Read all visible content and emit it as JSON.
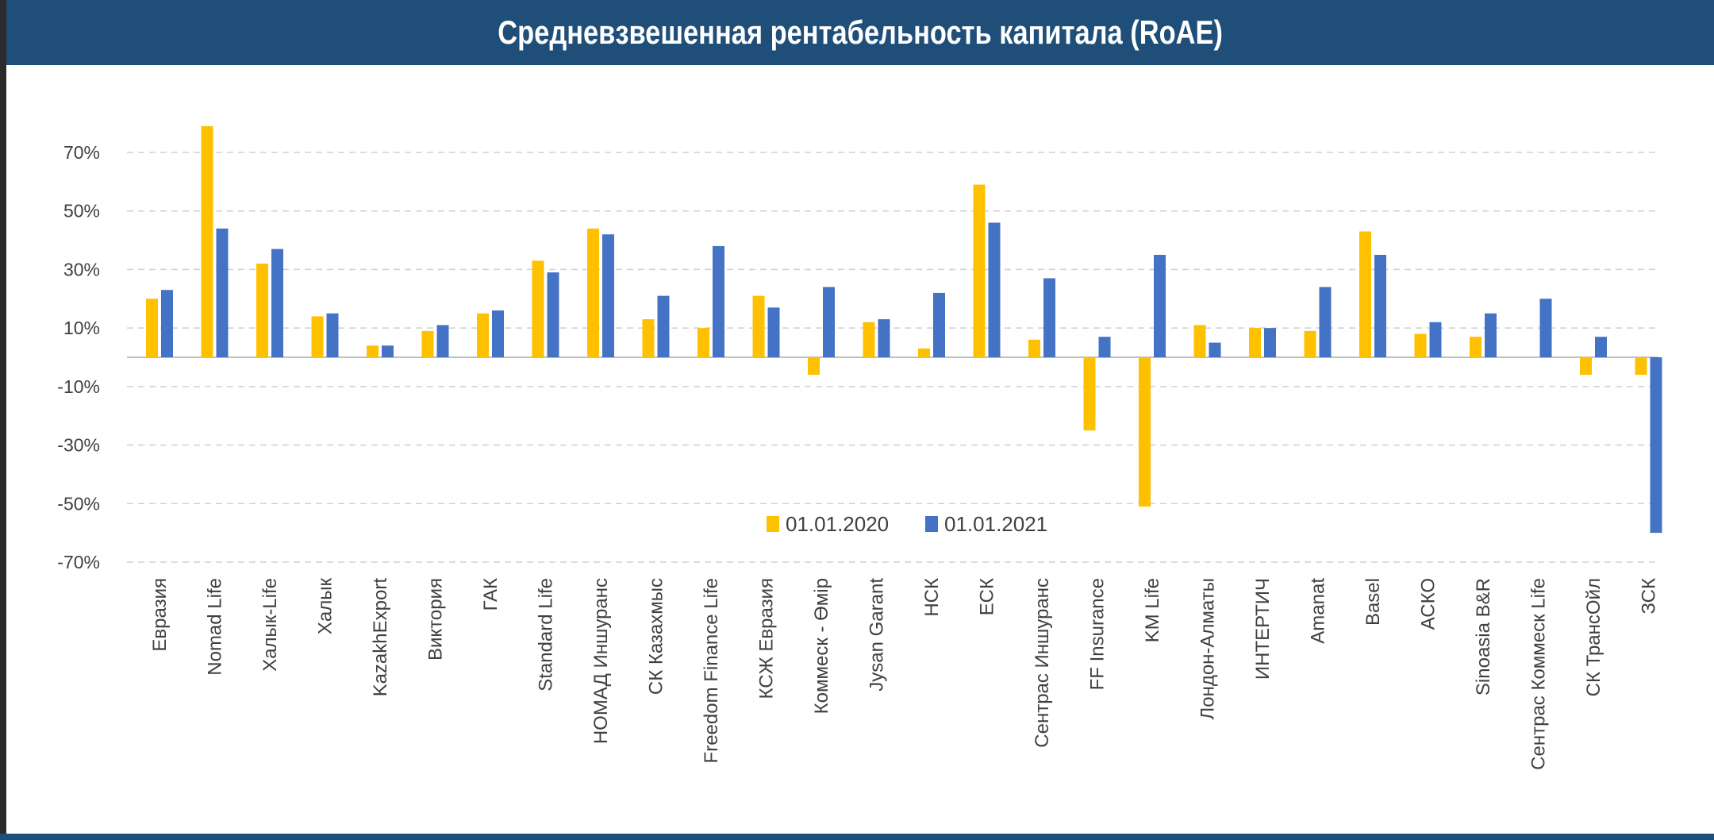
{
  "chart_data": {
    "type": "bar",
    "title": "Средневзвешенная рентабельность капитала (RoAE)",
    "ylim": [
      -70,
      80
    ],
    "yticks": [
      -70,
      -50,
      -30,
      -10,
      10,
      30,
      50,
      70
    ],
    "ytick_labels": [
      "-70%",
      "-50%",
      "-30%",
      "-10%",
      "10%",
      "30%",
      "50%",
      "70%"
    ],
    "grid": true,
    "legend_position": "bottom-center",
    "categories": [
      "Евразия",
      "Nomad Life",
      "Халык-Life",
      "Халык",
      "KazakhExport",
      "Виктория",
      "ГАК",
      "Standard Life",
      "НОМАД Иншуранс",
      "СК Казахмыс",
      "Freedom Finance Life",
      "КСЖ Евразия",
      "Коммеск - Өмір",
      "Jysan Garant",
      "НСК",
      "ЕСК",
      "Сентрас Иншуранс",
      "FF Insurance",
      "KM Life",
      "Лондон-Алматы",
      "ИНТЕРТИЧ",
      "Amanat",
      "Basel",
      "АСКО",
      "Sinoasia B&R",
      "Сентрас Коммеск Life",
      "СК ТрансОйл",
      "ЗСК"
    ],
    "series": [
      {
        "name": "01.01.2020",
        "color": "#ffc000",
        "values": [
          20,
          79,
          32,
          14,
          4,
          9,
          15,
          33,
          44,
          13,
          10,
          21,
          -6,
          12,
          3,
          59,
          6,
          -25,
          -51,
          11,
          10,
          9,
          43,
          8,
          7,
          null,
          -6,
          -6
        ]
      },
      {
        "name": "01.01.2021",
        "color": "#4472c4",
        "values": [
          23,
          44,
          37,
          15,
          4,
          11,
          16,
          29,
          42,
          21,
          38,
          17,
          24,
          13,
          22,
          46,
          27,
          7,
          35,
          5,
          10,
          24,
          35,
          12,
          15,
          20,
          7,
          -60
        ]
      }
    ]
  }
}
